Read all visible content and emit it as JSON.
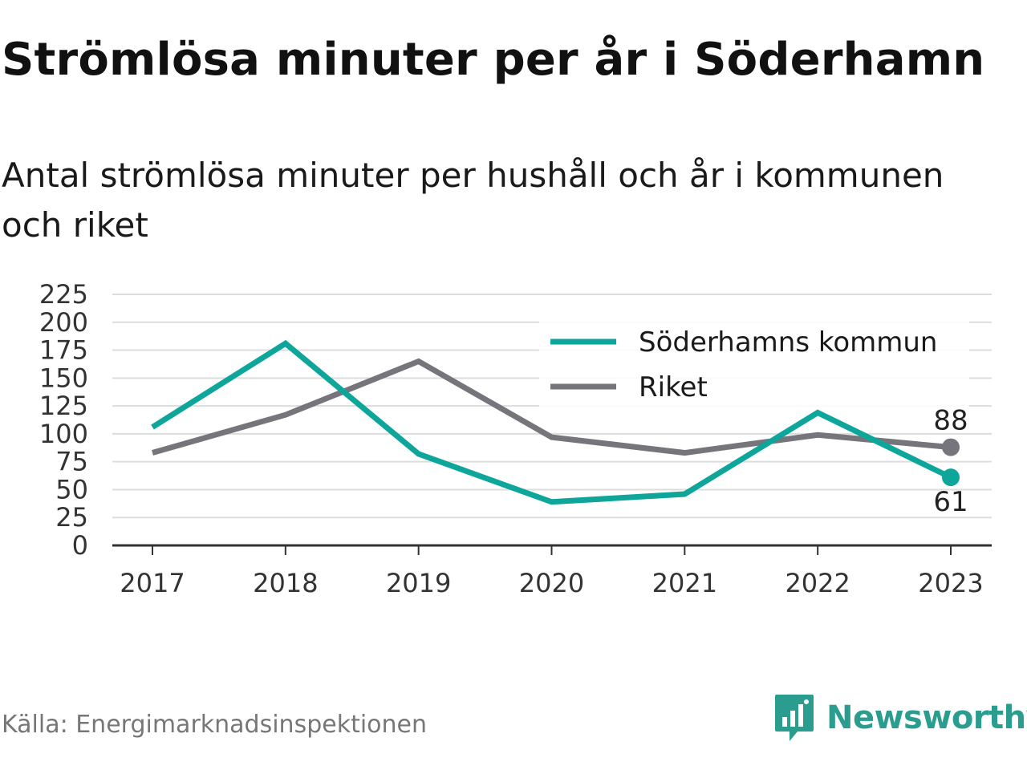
{
  "header": {
    "title": "Strömlösa minuter per år i Söderhamn",
    "subtitle": "Antal strömlösa minuter per hushåll och år i kommunen och riket"
  },
  "footer": {
    "source": "Källa: Energimarknadsinspektionen",
    "brand": "Newsworthy"
  },
  "colors": {
    "kommun": "#0ea59a",
    "riket": "#76757c",
    "grid": "#dddddd",
    "axis": "#333333"
  },
  "chart_data": {
    "type": "line",
    "categories": [
      "2017",
      "2018",
      "2019",
      "2020",
      "2021",
      "2022",
      "2023"
    ],
    "series": [
      {
        "name": "Söderhamns kommun",
        "color": "#0ea59a",
        "values": [
          106,
          181,
          82,
          39,
          46,
          119,
          61
        ],
        "end_label": "61"
      },
      {
        "name": "Riket",
        "color": "#76757c",
        "values": [
          83,
          117,
          165,
          97,
          83,
          99,
          88
        ],
        "end_label": "88"
      }
    ],
    "ylim": [
      0,
      225
    ],
    "yticks": [
      0,
      25,
      50,
      75,
      100,
      125,
      150,
      175,
      200,
      225
    ],
    "grid": true,
    "legend": "top-right"
  }
}
